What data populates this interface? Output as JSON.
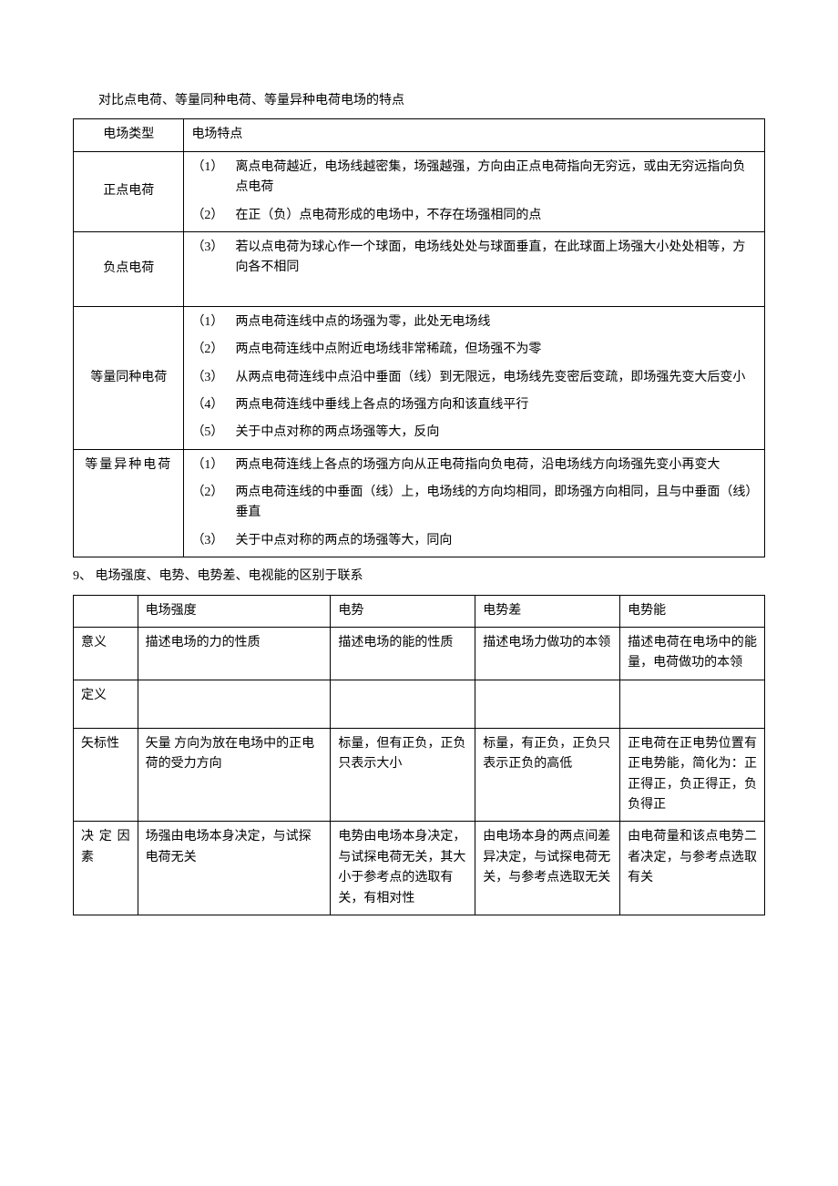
{
  "title": "对比点电荷、等量同种电荷、等量异种电荷电场的特点",
  "table1": {
    "header": {
      "c1": "电场类型",
      "c2": "电场特点"
    },
    "rows": [
      {
        "label": "正点电荷",
        "items": [
          {
            "n": "（1）",
            "t": "离点电荷越近，电场线越密集，场强越强，方向由正点电荷指向无穷远，或由无穷远指向负点电荷"
          },
          {
            "n": "（2）",
            "t": "在正（负）点电荷形成的电场中，不存在场强相同的点"
          }
        ]
      },
      {
        "label": "负点电荷",
        "items": [
          {
            "n": "（3）",
            "t": "若以点电荷为球心作一个球面，电场线处处与球面垂直，在此球面上场强大小处处相等，方向各不相同"
          }
        ],
        "extraPad": true
      },
      {
        "label": "等量同种电荷",
        "items": [
          {
            "n": "（1）",
            "t": "两点电荷连线中点的场强为零，此处无电场线"
          },
          {
            "n": "（2）",
            "t": "两点电荷连线中点附近电场线非常稀疏，但场强不为零"
          },
          {
            "n": "（3）",
            "t": "从两点电荷连线中点沿中垂面（线）到无限远，电场线先变密后变疏，即场强先变大后变小"
          },
          {
            "n": "（4）",
            "t": "两点电荷连线中垂线上各点的场强方向和该直线平行"
          },
          {
            "n": "（5）",
            "t": "关于中点对称的两点场强等大，反向"
          }
        ]
      },
      {
        "label": "等量异种电荷",
        "labelSparse": true,
        "labelAlignTop": true,
        "items": [
          {
            "n": "（1）",
            "t": "两点电荷连线上各点的场强方向从正电荷指向负电荷，沿电场线方向场强先变小再变大"
          },
          {
            "n": "（2）",
            "t": "两点电荷连线的中垂面（线）上，电场线的方向均相同，即场强方向相同，且与中垂面（线）垂直"
          },
          {
            "n": "（3）",
            "t": "关于中点对称的两点的场强等大，同向"
          }
        ]
      }
    ]
  },
  "section9": "9、 电场强度、电势、电势差、电视能的区别于联系",
  "table2": {
    "header": {
      "c0": "",
      "c1": "电场强度",
      "c2": "电势",
      "c3": "电势差",
      "c4": "电势能"
    },
    "rows": [
      {
        "c0": "意义",
        "c1": "描述电场的力的性质",
        "c2": "描述电场的能的性质",
        "c3": "描述电场力做功的本领",
        "c4": "描述电荷在电场中的能量，电荷做功的本领",
        "c4sparse": true
      },
      {
        "c0": "定义",
        "c1": "",
        "c2": "",
        "c3": "",
        "c4": "",
        "def": true
      },
      {
        "c0": "矢标性",
        "c0sparse": true,
        "c1": "矢量 方向为放在电场中的正电荷的受力方向",
        "c2": "标量，但有正负，正负只表示大小",
        "c3": "标量，有正负，正负只表示正负的高低",
        "c4": "正电荷在正电势位置有正电势能，简化为：正正得正，负正得正，负负得正",
        "c4sparse": true
      },
      {
        "c0": "决定因素",
        "c0sparse": true,
        "c1": "场强由电场本身决定，与试探电荷无关",
        "c2": "电势由电场本身决定，与试探电荷无关，其大小于参考点的选取有关，有相对性",
        "c3": "由电场本身的两点间差异决定，与试探电荷无关，与参考点选取无关",
        "c4": "由电荷量和该点电势二者决定，与参考点选取有关",
        "c4sparse": true
      }
    ]
  }
}
